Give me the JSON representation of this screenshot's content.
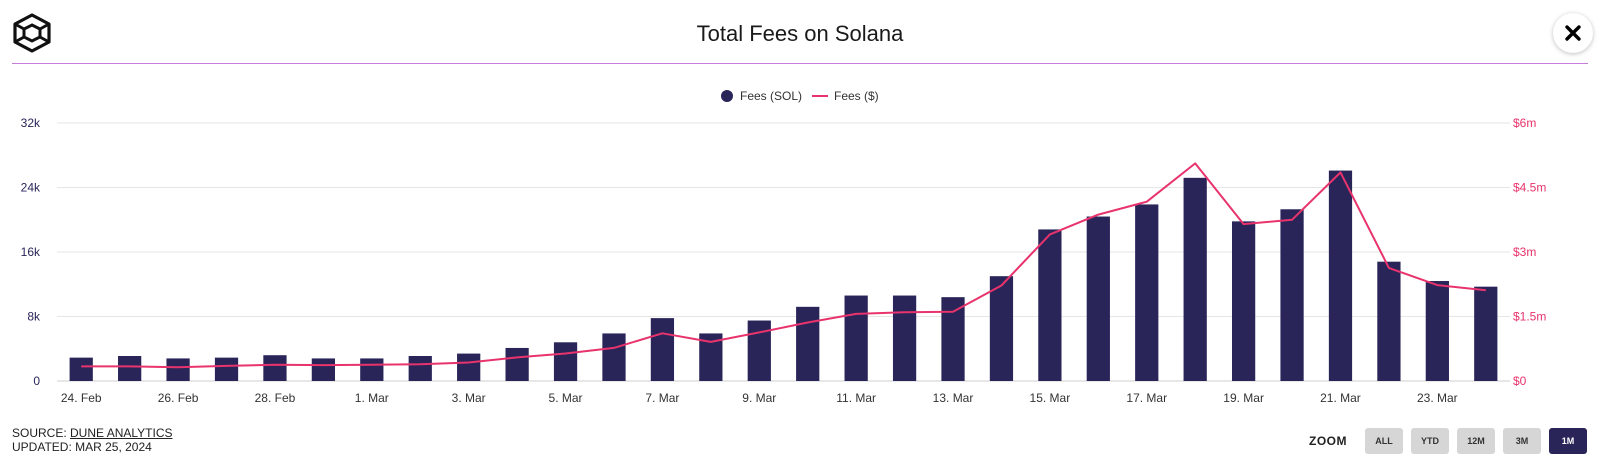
{
  "header": {
    "title": "Total Fees on Solana",
    "logo_icon": "cube-logo-icon",
    "close_icon": "close-icon"
  },
  "footer": {
    "source_prefix": "SOURCE: ",
    "source_name": "DUNE ANALYTICS",
    "updated": "UPDATED: MAR 25, 2024"
  },
  "zoom": {
    "label": "ZOOM",
    "options": [
      "ALL",
      "YTD",
      "12M",
      "3M",
      "1M"
    ],
    "selected": "1M"
  },
  "colors": {
    "bar": "#2a2559",
    "line": "#e8336d",
    "grid": "#e6e6e6"
  },
  "chart_data": {
    "type": "bar",
    "title": "Total Fees on Solana",
    "categories": [
      "24. Feb",
      "25. Feb",
      "26. Feb",
      "27. Feb",
      "28. Feb",
      "29. Feb",
      "1. Mar",
      "2. Mar",
      "3. Mar",
      "4. Mar",
      "5. Mar",
      "6. Mar",
      "7. Mar",
      "8. Mar",
      "9. Mar",
      "10. Mar",
      "11. Mar",
      "12. Mar",
      "13. Mar",
      "14. Mar",
      "15. Mar",
      "16. Mar",
      "17. Mar",
      "18. Mar",
      "19. Mar",
      "20. Mar",
      "21. Mar",
      "22. Mar",
      "23. Mar",
      "24. Mar"
    ],
    "x_tick_labels": [
      "24. Feb",
      "26. Feb",
      "28. Feb",
      "1. Mar",
      "3. Mar",
      "5. Mar",
      "7. Mar",
      "9. Mar",
      "11. Mar",
      "13. Mar",
      "15. Mar",
      "17. Mar",
      "19. Mar",
      "21. Mar",
      "23. Mar"
    ],
    "series": [
      {
        "name": "Fees (SOL)",
        "type": "bar",
        "axis": "left",
        "values": [
          2900,
          3100,
          2800,
          2900,
          3200,
          2800,
          2800,
          3100,
          3400,
          4100,
          4800,
          5900,
          7800,
          5900,
          7500,
          9200,
          10600,
          10600,
          10400,
          13000,
          18800,
          20400,
          21900,
          25200,
          19800,
          21300,
          26100,
          14800,
          12400,
          11700
        ]
      },
      {
        "name": "Fees ($)",
        "type": "line",
        "axis": "right",
        "values": [
          340000,
          340000,
          320000,
          350000,
          380000,
          370000,
          380000,
          390000,
          430000,
          550000,
          640000,
          770000,
          1110000,
          910000,
          1130000,
          1360000,
          1560000,
          1600000,
          1610000,
          2220000,
          3410000,
          3870000,
          4170000,
          5060000,
          3650000,
          3750000,
          4850000,
          2630000,
          2230000,
          2110000
        ]
      }
    ],
    "y_left": {
      "min": 0,
      "max": 32000,
      "ticks": [
        0,
        8000,
        16000,
        24000,
        32000
      ],
      "tick_labels": [
        "0",
        "8k",
        "16k",
        "24k",
        "32k"
      ]
    },
    "y_right": {
      "min": 0,
      "max": 6000000,
      "ticks": [
        0,
        1500000,
        3000000,
        4500000,
        6000000
      ],
      "tick_labels": [
        "$0",
        "$1.5m",
        "$3m",
        "$4.5m",
        "$6m"
      ]
    },
    "legend": {
      "position": "top-center"
    },
    "grid": true
  }
}
